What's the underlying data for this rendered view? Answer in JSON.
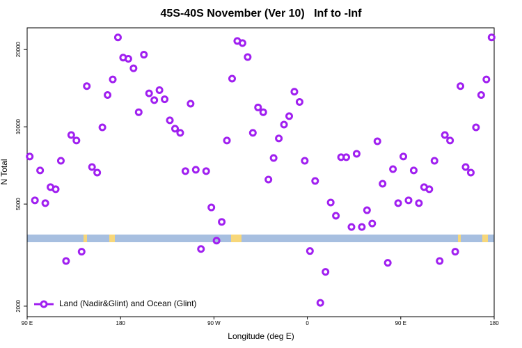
{
  "chart_data": {
    "type": "scatter",
    "title": "45S-40S November (Ver 10)   Inf to -Inf",
    "x_label": "Longitude (deg E)",
    "y_label": "N Total",
    "x": [
      92.5,
      97.5,
      102.5,
      107.5,
      112.5,
      117.5,
      122.5,
      127.5,
      132.5,
      137.5,
      142.5,
      147.5,
      152.5,
      157.5,
      162.5,
      167.5,
      172.5,
      177.5,
      182.5,
      187.5,
      192.5,
      197.5,
      202.5,
      207.5,
      212.5,
      217.5,
      222.5,
      227.5,
      232.5,
      237.5,
      242.5,
      247.5,
      252.5,
      257.5,
      262.5,
      267.5,
      272.5,
      277.5,
      282.5,
      287.5,
      292.5,
      297.5,
      302.5,
      307.5,
      312.5,
      317.5,
      322.5,
      327.5,
      332.5,
      337.5,
      342.5,
      347.5,
      352.5,
      357.5,
      362.5,
      367.5,
      372.5,
      377.5,
      382.5,
      387.5,
      392.5,
      397.5,
      402.5,
      407.5,
      412.5,
      417.5,
      422.5,
      427.5,
      432.5,
      437.5,
      442.5,
      447.5,
      452.5,
      457.5,
      462.5,
      467.5,
      472.5,
      477.5,
      482.5,
      487.5,
      492.5,
      497.5,
      502.5,
      507.5,
      512.5,
      517.5,
      522.5,
      527.5,
      532.5,
      537.5
    ],
    "series": [
      {
        "name": "Land (Nadir&Glint) and Ocean (Glint)",
        "color": "#a020f0",
        "values": [
          7660,
          5170,
          6760,
          5040,
          5820,
          5710,
          7370,
          3000,
          9290,
          8840,
          3260,
          14400,
          6970,
          6630,
          9950,
          13300,
          15300,
          22300,
          18600,
          18400,
          16900,
          11400,
          19100,
          13500,
          12700,
          13900,
          12800,
          10600,
          9830,
          9470,
          6720,
          12300,
          6800,
          3340,
          6720,
          4850,
          3600,
          4260,
          8840,
          15400,
          21600,
          21200,
          18700,
          9470,
          11900,
          11400,
          6230,
          7560,
          9010,
          10200,
          11000,
          13700,
          12500,
          7370,
          3280,
          6150,
          2060,
          2720,
          5070,
          4500,
          7610,
          7610,
          4070,
          7850,
          4070,
          4730,
          4200,
          8780,
          6000,
          2950,
          6840,
          5040,
          7660,
          5170,
          6760,
          5040,
          5820,
          5710,
          7370,
          3000,
          9290,
          8840,
          3260,
          14400,
          6970,
          6630,
          9950,
          13300,
          15300,
          22300
        ]
      }
    ],
    "xlim": [
      90,
      540
    ],
    "xticks": [
      {
        "value": 90,
        "label": "90 E"
      },
      180,
      {
        "value": 270,
        "label": "90 W"
      },
      {
        "value": 360,
        "label": "0"
      },
      {
        "value": 450,
        "label": "90 E"
      },
      {
        "value": 540,
        "label": "180"
      }
    ],
    "ylim": [
      1820,
      24300
    ],
    "yticks": [
      2000,
      5000,
      10000,
      20000
    ],
    "log_y": true,
    "legend": "lower left"
  }
}
